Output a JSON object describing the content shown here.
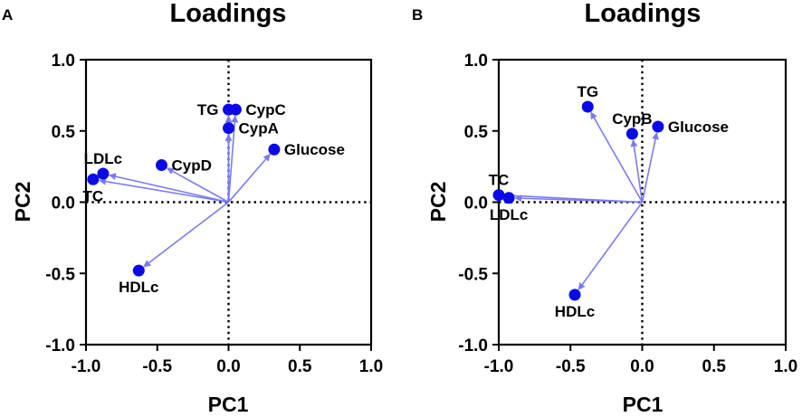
{
  "colors": {
    "point": "#0a0ae6",
    "arrow": "#7b7bf0",
    "axis": "#000000"
  },
  "chart_data": [
    {
      "panel": "A",
      "type": "scatter",
      "title": "Loadings",
      "xlabel": "PC1",
      "ylabel": "PC2",
      "xlim": [
        -1.0,
        1.0
      ],
      "ylim": [
        -1.0,
        1.0
      ],
      "xticks": [
        "-1.0",
        "-0.5",
        "0.0",
        "0.5",
        "1.0"
      ],
      "yticks": [
        "1.0",
        "0.5",
        "0.0",
        "-0.5",
        "-1.0"
      ],
      "zero_lines": "dotted",
      "points": [
        {
          "name": "TG",
          "x": 0.0,
          "y": 0.65,
          "label_pos": "left"
        },
        {
          "name": "CypC",
          "x": 0.05,
          "y": 0.65,
          "label_pos": "right"
        },
        {
          "name": "CypA",
          "x": 0.0,
          "y": 0.52,
          "label_pos": "right"
        },
        {
          "name": "Glucose",
          "x": 0.32,
          "y": 0.37,
          "label_pos": "right"
        },
        {
          "name": "CypD",
          "x": -0.47,
          "y": 0.26,
          "label_pos": "right"
        },
        {
          "name": "LDLc",
          "x": -0.88,
          "y": 0.2,
          "label_pos": "above"
        },
        {
          "name": "TC",
          "x": -0.95,
          "y": 0.16,
          "label_pos": "below"
        },
        {
          "name": "HDLc",
          "x": -0.63,
          "y": -0.48,
          "label_pos": "below"
        }
      ]
    },
    {
      "panel": "B",
      "type": "scatter",
      "title": "Loadings",
      "xlabel": "PC1",
      "ylabel": "PC2",
      "xlim": [
        -1.0,
        1.0
      ],
      "ylim": [
        -1.0,
        1.0
      ],
      "xticks": [
        "-1.0",
        "-0.5",
        "0.0",
        "0.5",
        "1.0"
      ],
      "yticks": [
        "1.0",
        "0.5",
        "0.0",
        "-0.5",
        "-1.0"
      ],
      "zero_lines": "dotted",
      "points": [
        {
          "name": "TG",
          "x": -0.38,
          "y": 0.67,
          "label_pos": "above"
        },
        {
          "name": "CypB",
          "x": -0.07,
          "y": 0.48,
          "label_pos": "above"
        },
        {
          "name": "Glucose",
          "x": 0.11,
          "y": 0.53,
          "label_pos": "right"
        },
        {
          "name": "TC",
          "x": -1.0,
          "y": 0.05,
          "label_pos": "above"
        },
        {
          "name": "LDLc",
          "x": -0.93,
          "y": 0.03,
          "label_pos": "below"
        },
        {
          "name": "HDLc",
          "x": -0.47,
          "y": -0.65,
          "label_pos": "below"
        }
      ]
    }
  ]
}
